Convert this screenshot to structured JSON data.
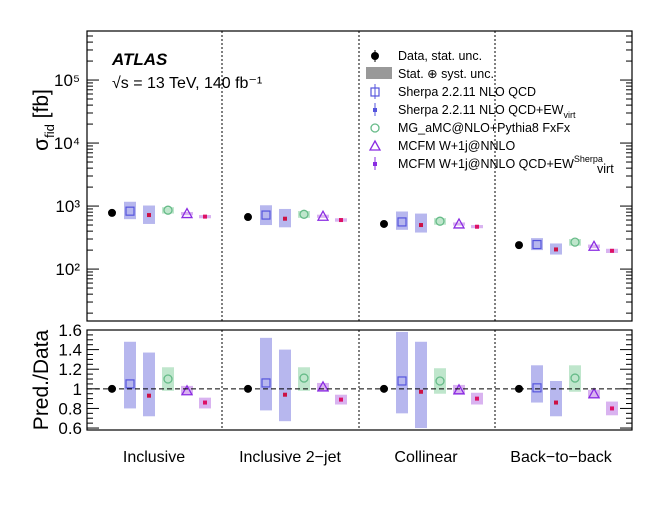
{
  "chart_data": {
    "type": "scatter",
    "experiment": "ATLAS",
    "energy_text": "√s = 13 TeV, 140 fb⁻¹",
    "categories": [
      "Inclusive",
      "Inclusive 2−jet",
      "Collinear",
      "Back−to−back"
    ],
    "top_panel": {
      "ylabel": "σfid [fb]",
      "yscale": "log",
      "ylim": [
        15,
        600000
      ],
      "ytick_labels": [
        "10²",
        "10³",
        "10⁴",
        "10⁵"
      ],
      "ytick_values": [
        100,
        1000,
        10000,
        100000
      ]
    },
    "bottom_panel": {
      "ylabel": "Pred./Data",
      "ylim": [
        0.58,
        1.6
      ],
      "ytick_values": [
        0.6,
        0.8,
        1,
        1.2,
        1.4,
        1.6
      ],
      "ytick_labels": [
        "0.6",
        "0.8",
        "1",
        "1.2",
        "1.4",
        "1.6"
      ]
    },
    "legend": [
      "Data, stat. unc.",
      "Stat. ⊕ syst. unc.",
      "Sherpa 2.2.11 NLO QCD",
      "Sherpa 2.2.11 NLO QCD+EW",
      "MG_aMC@NLO+Pythia8 FxFx",
      "MCFM W+1j@NNLO",
      "MCFM W+1j@NNLO QCD+EW"
    ],
    "legend_suffixes": {
      "sherpa_ew_sub": "virt",
      "mg_sup": "",
      "mcfm_ew_sup": "Sherpa",
      "mcfm_ew_sub": "virt"
    },
    "colors": {
      "data": "#000000",
      "sherpa": "#5555dd",
      "sherpa_band": "#b7b7ee",
      "sherpa_ew_point": "#cc1144",
      "mg": "#66bb88",
      "mg_band": "#bfe6cc",
      "mcfm": "#8a2be2",
      "mcfm_band": "#d9b3f0",
      "mcfm_ew_point": "#dd1166",
      "legend_band": "#999999"
    },
    "series": [
      {
        "name": "Data, stat. unc.",
        "key": "data",
        "marker": "filled-circle",
        "values": [
          780,
          670,
          520,
          240
        ],
        "ratio": [
          1.0,
          1.0,
          1.0,
          1.0
        ]
      },
      {
        "name": "Sherpa 2.2.11 NLO QCD",
        "key": "sherpa",
        "marker": "open-square",
        "values": [
          830,
          720,
          560,
          245
        ],
        "band_low": [
          620,
          500,
          420,
          200
        ],
        "band_high": [
          1170,
          1030,
          820,
          310
        ],
        "ratio": [
          1.05,
          1.06,
          1.08,
          1.01
        ],
        "ratio_low": [
          0.8,
          0.78,
          0.75,
          0.86
        ],
        "ratio_high": [
          1.48,
          1.52,
          1.58,
          1.24
        ]
      },
      {
        "name": "Sherpa 2.2.11 NLO QCD+EW virt",
        "key": "sherpa_ew",
        "marker": "small-square",
        "values": [
          720,
          630,
          500,
          205
        ],
        "band_low": [
          520,
          460,
          380,
          170
        ],
        "band_high": [
          1020,
          900,
          760,
          255
        ],
        "ratio": [
          0.93,
          0.94,
          0.97,
          0.86
        ],
        "ratio_low": [
          0.72,
          0.67,
          0.6,
          0.72
        ],
        "ratio_high": [
          1.37,
          1.4,
          1.48,
          1.08
        ]
      },
      {
        "name": "MG_aMC@NLO+Pythia8 FxFx",
        "key": "mg",
        "marker": "open-circle",
        "values": [
          860,
          740,
          575,
          268
        ],
        "band_low": [
          760,
          650,
          505,
          235
        ],
        "band_high": [
          960,
          835,
          645,
          300
        ],
        "ratio": [
          1.1,
          1.11,
          1.08,
          1.11
        ],
        "ratio_low": [
          0.98,
          0.98,
          0.95,
          0.97
        ],
        "ratio_high": [
          1.22,
          1.22,
          1.21,
          1.24
        ]
      },
      {
        "name": "MCFM W+1j@NNLO",
        "key": "mcfm",
        "marker": "open-triangle",
        "values": [
          760,
          690,
          520,
          230
        ],
        "band_low": [
          715,
          650,
          490,
          215
        ],
        "band_high": [
          805,
          730,
          550,
          245
        ],
        "ratio": [
          0.98,
          1.02,
          0.99,
          0.95
        ],
        "ratio_low": [
          0.94,
          0.97,
          0.94,
          0.9
        ],
        "ratio_high": [
          1.03,
          1.06,
          1.04,
          0.99
        ]
      },
      {
        "name": "MCFM W+1j@NNLO QCD+EW virt",
        "key": "mcfm_ew",
        "marker": "small-square",
        "values": [
          680,
          600,
          470,
          195
        ],
        "band_low": [
          640,
          565,
          445,
          180
        ],
        "band_high": [
          720,
          640,
          500,
          210
        ],
        "ratio": [
          0.86,
          0.89,
          0.9,
          0.8
        ],
        "ratio_low": [
          0.8,
          0.84,
          0.84,
          0.73
        ],
        "ratio_high": [
          0.91,
          0.94,
          0.96,
          0.87
        ]
      }
    ]
  }
}
